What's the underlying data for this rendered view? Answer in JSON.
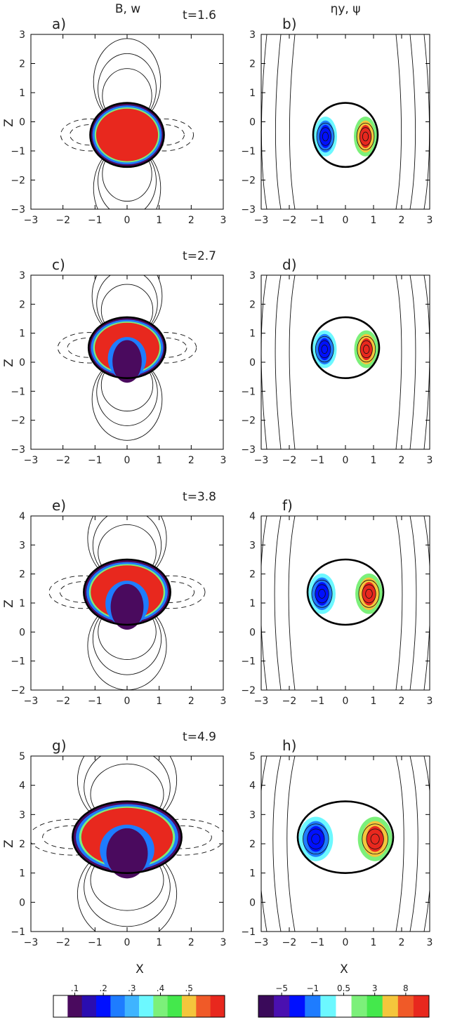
{
  "figure": {
    "column_titles": {
      "left": "B, w",
      "right": "ηy, ψ"
    },
    "xlabel": "X",
    "ylabel": "Z"
  },
  "chart_data": [
    {
      "type": "contour",
      "panel": "a",
      "time_label": "t=1.6",
      "xlim": [
        -3,
        3
      ],
      "ylim": [
        -3,
        3
      ],
      "xticks": [
        "−3",
        "−2",
        "−1",
        "0",
        "1",
        "2",
        "3"
      ],
      "yticks": [
        "−3",
        "−2",
        "−1",
        "0",
        "1",
        "2",
        "3"
      ],
      "blob": {
        "cx": 0,
        "cz": -0.45,
        "rx": 1.15,
        "top": 0.65,
        "bottom": -1.55
      }
    },
    {
      "type": "contour",
      "panel": "b",
      "time_label": "",
      "xlim": [
        -3,
        3
      ],
      "ylim": [
        -3,
        3
      ],
      "xticks": [
        "−3",
        "−2",
        "−1",
        "0",
        "1",
        "2",
        "3"
      ],
      "yticks": [
        "−3",
        "−2",
        "−1",
        "0",
        "1",
        "2",
        "3"
      ],
      "blob": {
        "cx": 0,
        "cz": -0.45,
        "rx": 1.15,
        "top": 0.65,
        "bottom": -1.55
      }
    },
    {
      "type": "contour",
      "panel": "c",
      "time_label": "t=2.7",
      "xlim": [
        -3,
        3
      ],
      "ylim": [
        -3,
        3
      ],
      "xticks": [
        "−3",
        "−2",
        "−1",
        "0",
        "1",
        "2",
        "3"
      ],
      "yticks": [
        "−3",
        "−2",
        "−1",
        "0",
        "1",
        "2",
        "3"
      ],
      "blob": {
        "cx": 0,
        "cz": 0.5,
        "rx": 1.2,
        "top": 1.55,
        "bottom": -0.55
      }
    },
    {
      "type": "contour",
      "panel": "d",
      "time_label": "",
      "xlim": [
        -3,
        3
      ],
      "ylim": [
        -3,
        3
      ],
      "xticks": [
        "−3",
        "−2",
        "−1",
        "0",
        "1",
        "2",
        "3"
      ],
      "yticks": [
        "−3",
        "−2",
        "−1",
        "0",
        "1",
        "2",
        "3"
      ],
      "blob": {
        "cx": 0,
        "cz": 0.5,
        "rx": 1.2,
        "top": 1.55,
        "bottom": -0.55
      }
    },
    {
      "type": "contour",
      "panel": "e",
      "time_label": "t=3.8",
      "xlim": [
        -3,
        3
      ],
      "ylim": [
        -2,
        4
      ],
      "xticks": [
        "−3",
        "−2",
        "−1",
        "0",
        "1",
        "2",
        "3"
      ],
      "yticks": [
        "−2",
        "−1",
        "0",
        "1",
        "2",
        "3",
        "4"
      ],
      "blob": {
        "cx": 0,
        "cz": 1.4,
        "rx": 1.35,
        "top": 2.5,
        "bottom": 0.25
      }
    },
    {
      "type": "contour",
      "panel": "f",
      "time_label": "",
      "xlim": [
        -3,
        3
      ],
      "ylim": [
        -2,
        4
      ],
      "xticks": [
        "−3",
        "−2",
        "−1",
        "0",
        "1",
        "2",
        "3"
      ],
      "yticks": [
        "−2",
        "−1",
        "0",
        "1",
        "2",
        "3",
        "4"
      ],
      "blob": {
        "cx": 0,
        "cz": 1.4,
        "rx": 1.35,
        "top": 2.5,
        "bottom": 0.25
      }
    },
    {
      "type": "contour",
      "panel": "g",
      "time_label": "t=4.9",
      "xlim": [
        -3,
        3
      ],
      "ylim": [
        -1,
        5
      ],
      "xticks": [
        "−3",
        "−2",
        "−1",
        "0",
        "1",
        "2",
        "3"
      ],
      "yticks": [
        "−1",
        "0",
        "1",
        "2",
        "3",
        "4",
        "5"
      ],
      "blob": {
        "cx": 0,
        "cz": 2.3,
        "rx": 1.7,
        "top": 3.45,
        "bottom": 1.0
      }
    },
    {
      "type": "contour",
      "panel": "h",
      "time_label": "",
      "xlim": [
        -3,
        3
      ],
      "ylim": [
        -1,
        5
      ],
      "xticks": [
        "−3",
        "−2",
        "−1",
        "0",
        "1",
        "2",
        "3"
      ],
      "yticks": [
        "−1",
        "0",
        "1",
        "2",
        "3",
        "4",
        "5"
      ],
      "blob": {
        "cx": 0,
        "cz": 2.3,
        "rx": 1.7,
        "top": 3.45,
        "bottom": 1.0
      }
    }
  ],
  "colorbars": [
    {
      "labels": [
        ".1",
        ".2",
        ".3",
        ".4",
        ".5"
      ],
      "colors": [
        "#ffffff",
        "#4a0a5e",
        "#2a0db0",
        "#0010ff",
        "#1e7cff",
        "#3fb4ff",
        "#6cf8ff",
        "#7cf07a",
        "#44e84c",
        "#f4c63c",
        "#f05a28",
        "#e8281e"
      ]
    },
    {
      "labels": [
        "−5",
        "−1",
        "0.5",
        "3",
        "8"
      ],
      "colors": [
        "#3a0a5a",
        "#4a10b0",
        "#0010ff",
        "#1e7cff",
        "#6cf8ff",
        "#ffffff",
        "#7cf07a",
        "#44e84c",
        "#f4c63c",
        "#f05a28",
        "#e8281e"
      ]
    }
  ]
}
